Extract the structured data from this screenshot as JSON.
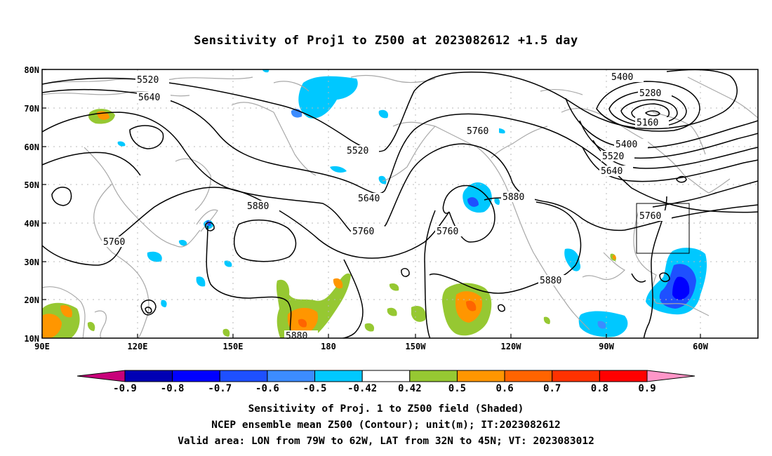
{
  "title": "Sensitivity of Proj1 to Z500 at 2023082612 +1.5 day",
  "lat_labels": [
    "80N",
    "70N",
    "60N",
    "50N",
    "40N",
    "30N",
    "20N",
    "10N"
  ],
  "lon_labels": [
    "90E",
    "120E",
    "150E",
    "180",
    "150W",
    "120W",
    "90W",
    "60W"
  ],
  "contour_labels": [
    "5520",
    "5640",
    "5520",
    "5640",
    "5760",
    "5760",
    "5880",
    "5760",
    "5880",
    "5880",
    "5880",
    "5760",
    "5400",
    "5280",
    "5160",
    "5400",
    "5520",
    "5640",
    "5760"
  ],
  "colorbar": {
    "colors": [
      "#c8007a",
      "#0000b4",
      "#0000ff",
      "#1e50ff",
      "#3c8cff",
      "#00c8ff",
      "#ffffff",
      "#96c832",
      "#ff9600",
      "#ff6400",
      "#ff3200",
      "#ff0000",
      "#ff96c8"
    ],
    "labels": [
      "-0.9",
      "-0.8",
      "-0.7",
      "-0.6",
      "-0.5",
      "-0.42",
      "0.42",
      "0.5",
      "0.6",
      "0.7",
      "0.8",
      "0.9"
    ]
  },
  "captions": {
    "line1": "Sensitivity of Proj. 1 to Z500 field (Shaded)",
    "line2": "NCEP ensemble mean Z500 (Contour); unit(m); IT:2023082612",
    "line3": "Valid area: LON from 79W to 62W, LAT from 32N to 45N; VT: 2023083012"
  }
}
